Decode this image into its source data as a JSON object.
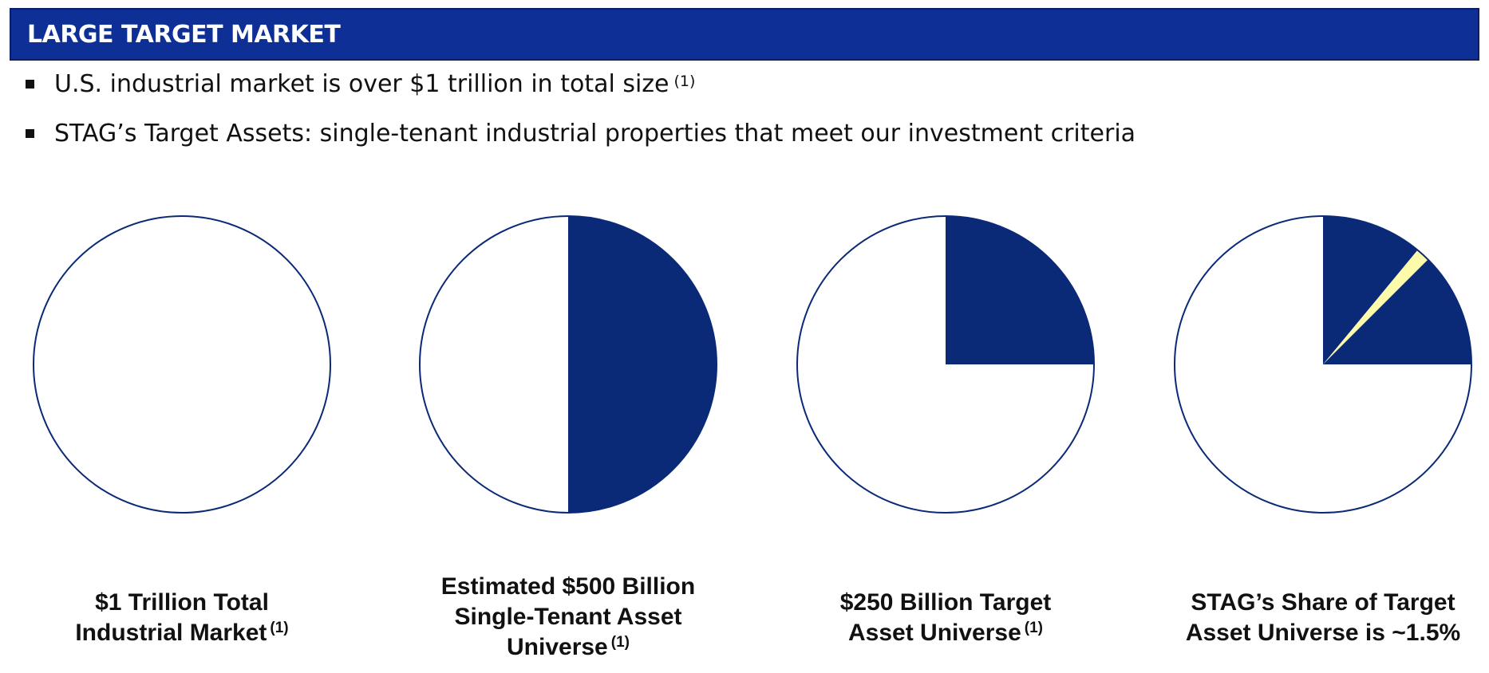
{
  "header": {
    "title": "LARGE TARGET MARKET"
  },
  "bullets": [
    {
      "text": "U.S. industrial market is over $1 trillion in total size",
      "footnote": "(1)"
    },
    {
      "text": "STAG’s Target Assets: single-tenant industrial properties that meet our investment criteria",
      "footnote": ""
    }
  ],
  "colors": {
    "header_bg": "#0e3096",
    "navy": "#0a2a78",
    "highlight_yellow": "#fbfbaa",
    "outline": "#0a2a78"
  },
  "chart_data": [
    {
      "type": "pie",
      "label_lines": [
        "$1 Trillion Total",
        "Industrial Market"
      ],
      "footnote": "(1)",
      "slices": [
        {
          "value": 100,
          "color": "#ffffff"
        }
      ]
    },
    {
      "type": "pie",
      "label_lines": [
        "Estimated $500 Billion",
        "Single-Tenant Asset",
        "Universe"
      ],
      "footnote": "(1)",
      "slices": [
        {
          "value": 50,
          "color": "#0a2a78"
        },
        {
          "value": 50,
          "color": "#ffffff"
        }
      ]
    },
    {
      "type": "pie",
      "label_lines": [
        "$250 Billion Target",
        "Asset Universe"
      ],
      "footnote": "(1)",
      "slices": [
        {
          "value": 25,
          "color": "#0a2a78"
        },
        {
          "value": 75,
          "color": "#ffffff"
        }
      ]
    },
    {
      "type": "pie",
      "label_lines": [
        "STAG’s Share of Target",
        "Asset Universe is ~1.5%"
      ],
      "footnote": "",
      "slices": [
        {
          "value": 11.0,
          "color": "#0a2a78"
        },
        {
          "value": 1.5,
          "color": "#fbfbaa"
        },
        {
          "value": 12.5,
          "color": "#0a2a78"
        },
        {
          "value": 75,
          "color": "#ffffff"
        }
      ]
    }
  ]
}
